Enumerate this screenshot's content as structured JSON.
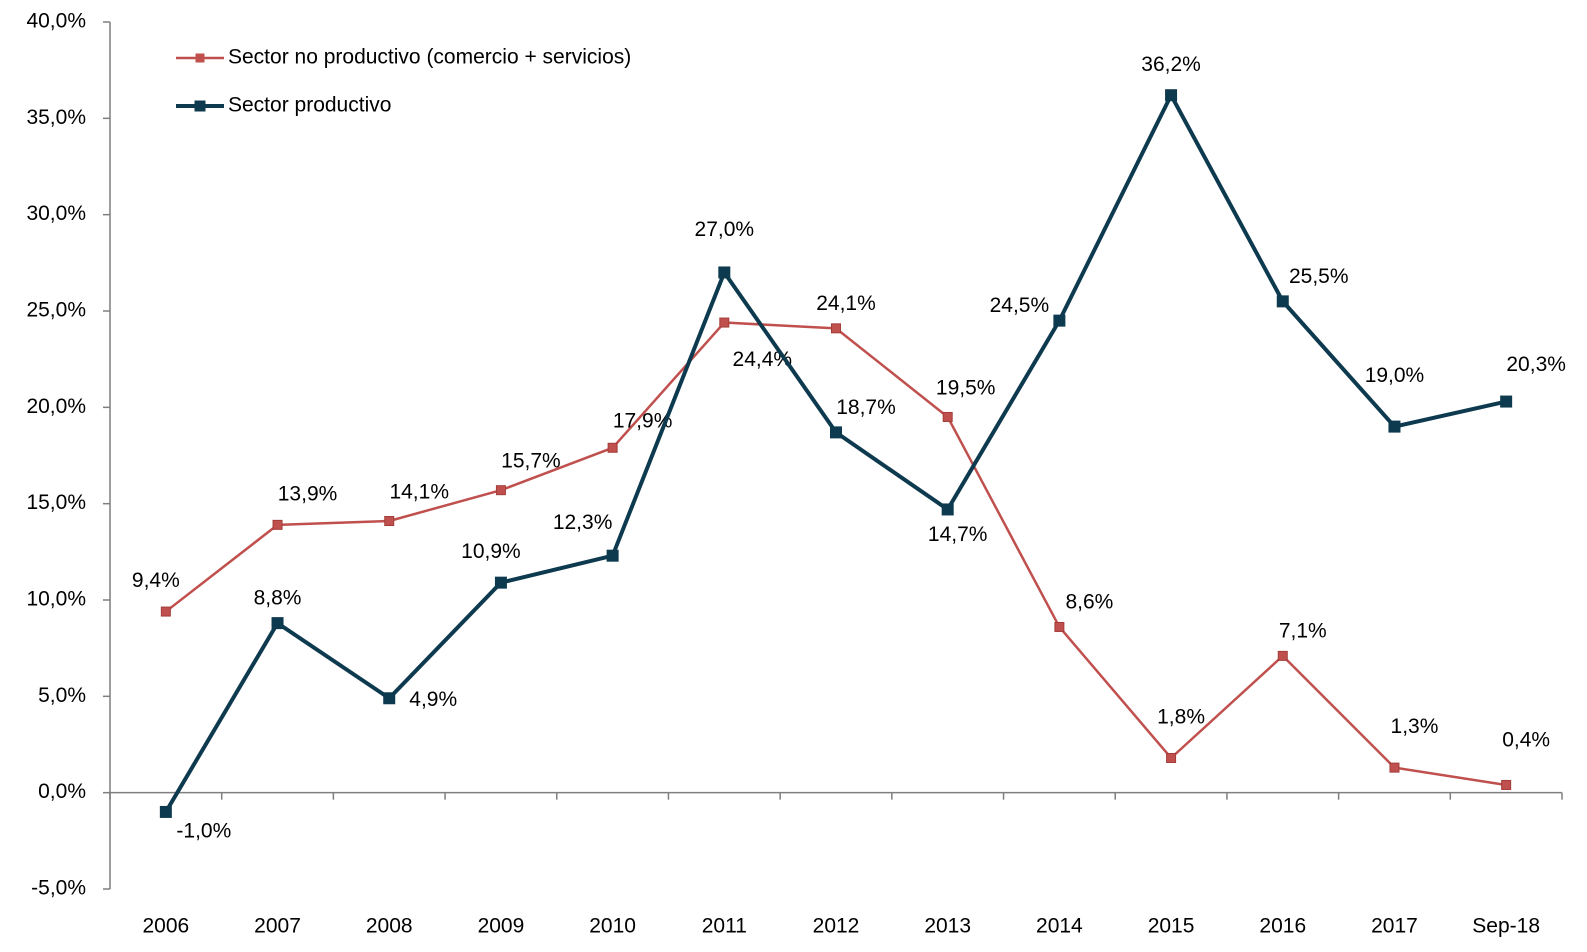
{
  "chart_data": {
    "type": "line",
    "categories": [
      "2006",
      "2007",
      "2008",
      "2009",
      "2010",
      "2011",
      "2012",
      "2013",
      "2014",
      "2015",
      "2016",
      "2017",
      "Sep-18"
    ],
    "series": [
      {
        "name": "Sector no productivo (comercio + servicios)",
        "color": "#c0504d",
        "label_color": "#7b3331",
        "values": [
          9.4,
          13.9,
          14.1,
          15.7,
          17.9,
          24.4,
          24.1,
          19.5,
          8.6,
          1.8,
          7.1,
          1.3,
          0.4
        ],
        "value_labels": [
          "9,4%",
          "13,9%",
          "14,1%",
          "15,7%",
          "17,9%",
          "24,4%",
          "24,1%",
          "19,5%",
          "8,6%",
          "1,8%",
          "7,1%",
          "1,3%",
          "0,4%"
        ]
      },
      {
        "name": "Sector productivo",
        "color": "#0e3a4f",
        "label_color": "#1f4a60",
        "values": [
          -1.0,
          8.8,
          4.9,
          10.9,
          12.3,
          27.0,
          18.7,
          14.7,
          24.5,
          36.2,
          25.5,
          19.0,
          20.3
        ],
        "value_labels": [
          "-1,0%",
          "8,8%",
          "4,9%",
          "10,9%",
          "12,3%",
          "27,0%",
          "18,7%",
          "14,7%",
          "24,5%",
          "36,2%",
          "25,5%",
          "19,0%",
          "20,3%"
        ]
      }
    ],
    "ylim": [
      -5,
      40
    ],
    "yticks": [
      {
        "value": -5,
        "label": "-5,0%"
      },
      {
        "value": 0,
        "label": "0,0%"
      },
      {
        "value": 5,
        "label": "5,0%"
      },
      {
        "value": 10,
        "label": "10,0%"
      },
      {
        "value": 15,
        "label": "15,0%"
      },
      {
        "value": 20,
        "label": "20,0%"
      },
      {
        "value": 25,
        "label": "25,0%"
      },
      {
        "value": 30,
        "label": "30,0%"
      },
      {
        "value": 35,
        "label": "35,0%"
      },
      {
        "value": 40,
        "label": "40,0%"
      }
    ],
    "grid": false,
    "legend": "upper left"
  }
}
